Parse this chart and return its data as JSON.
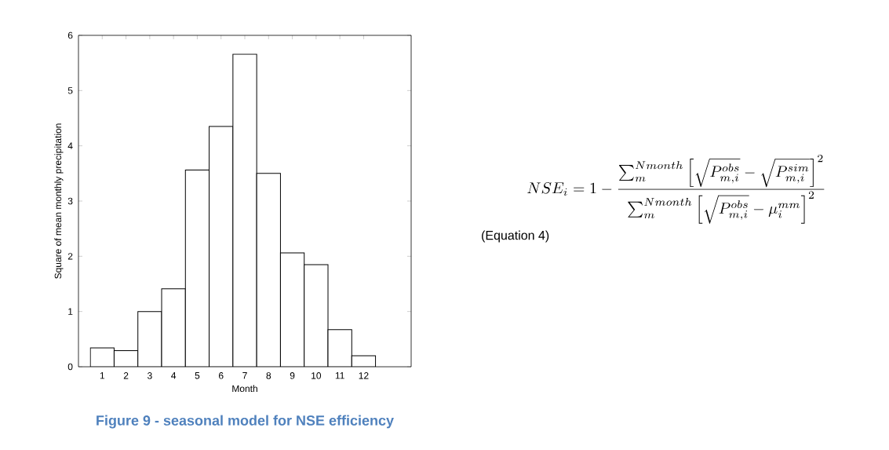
{
  "chart_data": {
    "type": "bar",
    "title": "Figure 9 - seasonal model for NSE efficiency",
    "xlabel": "Month",
    "ylabel": "Square of mean monthly precipitation",
    "x": [
      1,
      2,
      3,
      4,
      5,
      6,
      7,
      8,
      9,
      10,
      11,
      12
    ],
    "values": [
      0.34,
      0.29,
      1.0,
      1.41,
      3.56,
      4.35,
      5.66,
      3.5,
      2.06,
      1.85,
      0.67,
      0.2
    ],
    "color": "#ffffff",
    "xlim": [
      0,
      14
    ],
    "xticks": [
      1,
      2,
      3,
      4,
      5,
      6,
      7,
      8,
      9,
      10,
      11,
      12
    ],
    "ylim": [
      0,
      6
    ],
    "yticks": [
      0,
      1,
      2,
      3,
      4,
      5,
      6
    ],
    "grid": false,
    "annotations": [
      "NSE_i = 1 - \\frac{\\sum_m^{Nmonth}\\left[\\sqrt{P_{m,i}^{obs}}-\\sqrt{P_{m,i}^{sim}}\\right]^2}{\\sum_m^{Nmonth}\\left[\\sqrt{P_{m,i}^{obs}}-\\mu_i^{mm}\\right]^2}",
      "(Equation 4)"
    ]
  }
}
